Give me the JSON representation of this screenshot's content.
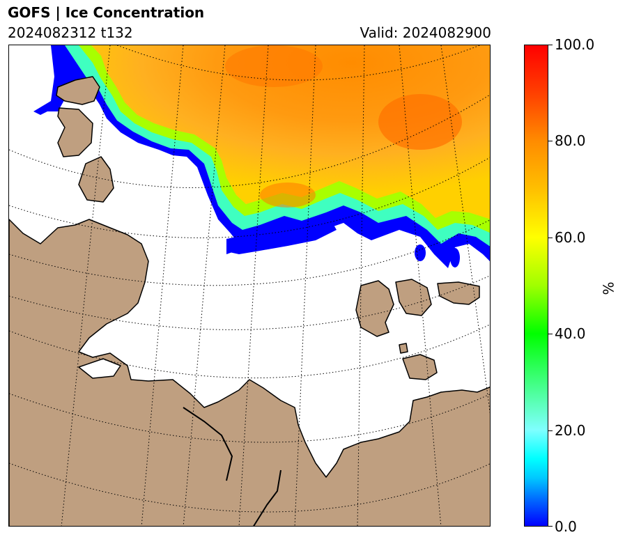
{
  "header": {
    "title": "GOFS  |  Ice Concentration",
    "run": "2024082312 t132",
    "valid": "Valid: 2024082900"
  },
  "map": {
    "land_color": "#bf9f80",
    "ocean_color": "#ffffff",
    "coastline_color": "#000000",
    "gridline_style": "dotted"
  },
  "colorbar": {
    "unit": "%",
    "range": [
      0,
      100
    ],
    "ticks": [
      "0.0",
      "20.0",
      "40.0",
      "60.0",
      "80.0",
      "100.0"
    ],
    "tick_values": [
      0,
      20,
      40,
      60,
      80,
      100
    ],
    "colors": [
      "#0000ff",
      "#00ffff",
      "#00ff00",
      "#ffff00",
      "#ff8c00",
      "#ff0000"
    ]
  }
}
